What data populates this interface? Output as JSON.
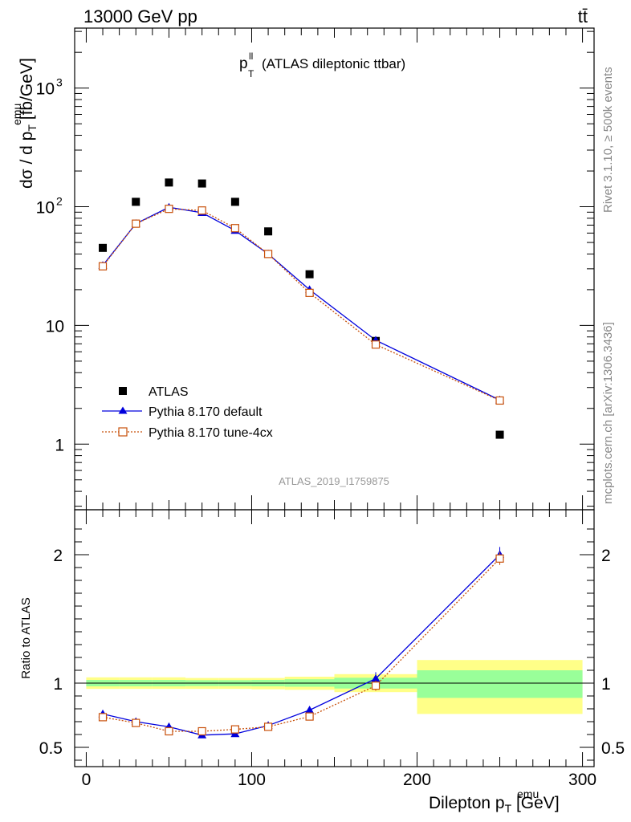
{
  "header": {
    "left": "13000 GeV pp",
    "right": "tt̄"
  },
  "side_labels": {
    "rivet": "Rivet 3.1.10, ≥ 500k events",
    "mcplots": "mcplots.cern.ch [arXiv:1306.3436]"
  },
  "analysis_id": "ATLAS_2019_I1759875",
  "chart_data": [
    {
      "type": "scatter",
      "panel": "main",
      "title_main": "p",
      "title_sup": "ll",
      "title_sub": "T",
      "title_rest": "(ATLAS dileptonic ttbar)",
      "ylabel_pre": "dσ / d p",
      "ylabel_sup": "emu",
      "ylabel_sub": "T",
      "ylabel_post": " [fb/GeV]",
      "yscale": "log",
      "ylim": [
        0.28,
        3200
      ],
      "xlim": [
        -7,
        307
      ],
      "yticks": [
        {
          "value": 1,
          "label": "1"
        },
        {
          "value": 10,
          "label": "10"
        },
        {
          "value": 100,
          "label": "10",
          "sup": "2"
        },
        {
          "value": 1000,
          "label": "10",
          "sup": "3"
        }
      ],
      "series": [
        {
          "name": "ATLAS",
          "color": "#000000",
          "marker": "filled-square",
          "x": [
            10,
            30,
            50,
            70,
            90,
            110,
            135,
            175,
            250
          ],
          "y": [
            45,
            110,
            160,
            157,
            110,
            62,
            27,
            7.4,
            1.2
          ]
        },
        {
          "name": "Pythia 8.170 default",
          "color": "#0000dd",
          "marker": "filled-triangle",
          "line": "solid",
          "x": [
            10,
            30,
            50,
            70,
            90,
            110,
            135,
            175,
            250
          ],
          "y": [
            32,
            72,
            99,
            89,
            63,
            40,
            20,
            7.5,
            2.35
          ]
        },
        {
          "name": "Pythia 8.170 tune-4cx",
          "color": "#c8500a",
          "marker": "open-square",
          "line": "dotted",
          "x": [
            10,
            30,
            50,
            70,
            90,
            110,
            135,
            175,
            250
          ],
          "y": [
            31.5,
            72,
            96,
            93,
            66,
            40,
            18.8,
            6.9,
            2.33
          ]
        }
      ],
      "legend_placement": "lower-left"
    },
    {
      "type": "line",
      "panel": "ratio",
      "ylabel": "Ratio to ATLAS",
      "ylim": [
        0.35,
        2.35
      ],
      "xlim": [
        -7,
        307
      ],
      "yticks": [
        {
          "value": 0.5,
          "label": "0.5"
        },
        {
          "value": 1,
          "label": "1"
        },
        {
          "value": 2,
          "label": "2"
        }
      ],
      "xticks": [
        {
          "value": 0,
          "label": "0"
        },
        {
          "value": 100,
          "label": "100"
        },
        {
          "value": 200,
          "label": "200"
        },
        {
          "value": 300,
          "label": "300"
        }
      ],
      "xlabel_pre": "Dilepton p",
      "xlabel_sup": "emu",
      "xlabel_sub": "T",
      "xlabel_post": " [GeV]",
      "bands": [
        {
          "x0": 0,
          "x1": 20,
          "yellow": [
            0.955,
            1.045
          ],
          "green": [
            0.975,
            1.025
          ]
        },
        {
          "x0": 20,
          "x1": 40,
          "yellow": [
            0.955,
            1.045
          ],
          "green": [
            0.975,
            1.025
          ]
        },
        {
          "x0": 40,
          "x1": 60,
          "yellow": [
            0.955,
            1.045
          ],
          "green": [
            0.975,
            1.025
          ]
        },
        {
          "x0": 60,
          "x1": 80,
          "yellow": [
            0.955,
            1.04
          ],
          "green": [
            0.977,
            1.023
          ]
        },
        {
          "x0": 80,
          "x1": 100,
          "yellow": [
            0.955,
            1.04
          ],
          "green": [
            0.977,
            1.023
          ]
        },
        {
          "x0": 100,
          "x1": 120,
          "yellow": [
            0.952,
            1.04
          ],
          "green": [
            0.975,
            1.025
          ]
        },
        {
          "x0": 120,
          "x1": 150,
          "yellow": [
            0.948,
            1.05
          ],
          "green": [
            0.972,
            1.03
          ]
        },
        {
          "x0": 150,
          "x1": 200,
          "yellow": [
            0.93,
            1.07
          ],
          "green": [
            0.958,
            1.042
          ]
        },
        {
          "x0": 200,
          "x1": 300,
          "yellow": [
            0.76,
            1.18
          ],
          "green": [
            0.885,
            1.1
          ]
        }
      ],
      "series": [
        {
          "name": "Pythia 8.170 default",
          "color": "#0000dd",
          "x": [
            10,
            30,
            50,
            70,
            90,
            110,
            135,
            175,
            250
          ],
          "y": [
            0.76,
            0.7,
            0.66,
            0.595,
            0.605,
            0.67,
            0.79,
            1.035,
            2.0
          ],
          "err": [
            0.03,
            0.02,
            0.01,
            0.01,
            0.01,
            0.02,
            0.03,
            0.05,
            0.06
          ]
        },
        {
          "name": "Pythia 8.170 tune-4cx",
          "color": "#c8500a",
          "x": [
            10,
            30,
            50,
            70,
            90,
            110,
            135,
            175,
            250
          ],
          "y": [
            0.735,
            0.69,
            0.625,
            0.625,
            0.64,
            0.66,
            0.74,
            0.98,
            1.97
          ],
          "err": [
            0.03,
            0.02,
            0.01,
            0.01,
            0.01,
            0.02,
            0.02,
            0.04,
            0.05
          ]
        }
      ]
    }
  ]
}
